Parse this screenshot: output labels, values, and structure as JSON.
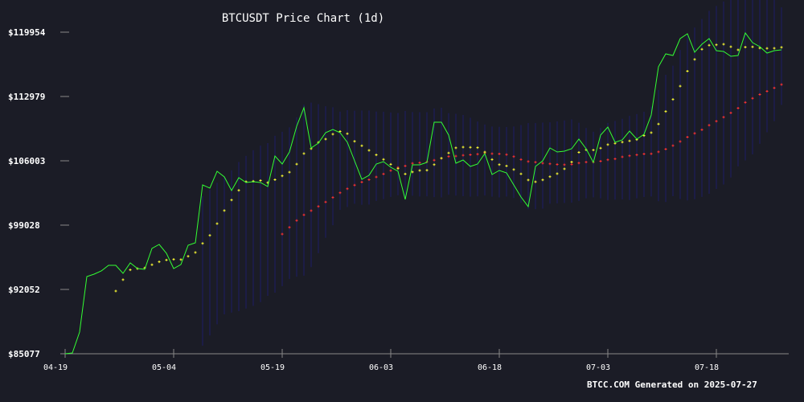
{
  "chart_data": {
    "type": "line",
    "title": "BTCUSDT Price Chart (1d)",
    "footer": "BTCC.COM Generated on 2025-07-27",
    "x_start": "2025-04-19",
    "x_end": "2025-07-27",
    "x_ticks": [
      "04-19",
      "05-04",
      "05-19",
      "06-03",
      "06-18",
      "07-03",
      "07-18"
    ],
    "y_ticks": [
      "$85077",
      "$92052",
      "$99028",
      "$106003",
      "$112979",
      "$119954"
    ],
    "ylim": [
      85077,
      119954
    ],
    "grid": false,
    "colors": {
      "background": "#1b1c26",
      "price": "#33ff33",
      "ma_short": "#ffff33",
      "ma_long": "#ff3333",
      "band": "#1e1e66",
      "axis": "#888888",
      "text": "#ffffff"
    },
    "series": [
      {
        "key": "price",
        "values": [
          85077,
          85164,
          87431,
          93447,
          93709,
          94057,
          94668,
          94668,
          93796,
          94929,
          94319,
          94232,
          96499,
          96935,
          95976,
          94319,
          94755,
          96847,
          97109,
          103387,
          103038,
          104869,
          104259,
          102777,
          104171,
          103648,
          103735,
          103648,
          103212,
          106525,
          105654,
          106961,
          109751,
          111756,
          107397,
          107920,
          109054,
          109402,
          109054,
          108008,
          106003,
          103998,
          104434,
          105654,
          105916,
          105306,
          104869,
          101818,
          105567,
          105567,
          105828,
          110188,
          110188,
          108793,
          105741,
          106090,
          105393,
          105654,
          106787,
          104521,
          104957,
          104695,
          103387,
          102079,
          101033,
          105393,
          106003,
          107397,
          106961,
          107048,
          107310,
          108356,
          107310,
          105828,
          108793,
          109665,
          108008,
          108269,
          109228,
          108356,
          108880,
          110972,
          116203,
          117598,
          117424,
          119255,
          119778,
          117772,
          118644,
          119255,
          117947,
          117860,
          117337,
          117424,
          119866,
          118819,
          118383,
          117685,
          117947,
          118034
        ]
      }
    ]
  }
}
